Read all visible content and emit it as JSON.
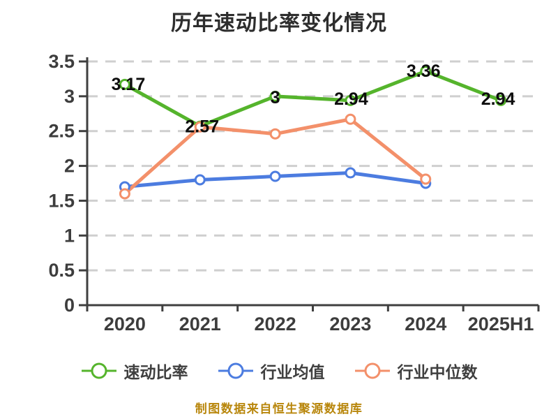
{
  "caption": "制图数据来自恒生聚源数据库",
  "colors": {
    "quick_ratio_green": "#55b42c",
    "industry_mean_blue": "#4c7ce0",
    "industry_median_orange": "#f3906a",
    "caption_gold": "#b8860b",
    "grid_gray": "#cfcfcf",
    "axis_dark": "#3f3f3f"
  },
  "chart_data": {
    "type": "line",
    "title": "历年速动比率变化情况",
    "categories": [
      "2020",
      "2021",
      "2022",
      "2023",
      "2024",
      "2025H1"
    ],
    "series": [
      {
        "name": "速动比率",
        "color": "#55b42c",
        "values": [
          3.17,
          2.57,
          3,
          2.94,
          3.36,
          2.94
        ],
        "labels": [
          "3.17",
          "2.57",
          "3",
          "2.94",
          "3.36",
          "2.94"
        ]
      },
      {
        "name": "行业均值",
        "color": "#4c7ce0",
        "values": [
          1.7,
          1.8,
          1.85,
          1.9,
          1.75,
          null
        ]
      },
      {
        "name": "行业中位数",
        "color": "#f3906a",
        "values": [
          1.6,
          2.56,
          2.46,
          2.67,
          1.81,
          null
        ]
      }
    ],
    "xlabel": "",
    "ylabel": "",
    "ylim": [
      0,
      3.5
    ],
    "ytick_values": [
      0,
      0.5,
      1,
      1.5,
      2,
      2.5,
      3,
      3.5
    ],
    "ytick_labels": [
      "0",
      "0.5",
      "1",
      "1.5",
      "2",
      "2.5",
      "3",
      "3.5"
    ],
    "grid": "dashed-horizontal",
    "legend_position": "bottom",
    "marker": "open-circle"
  }
}
